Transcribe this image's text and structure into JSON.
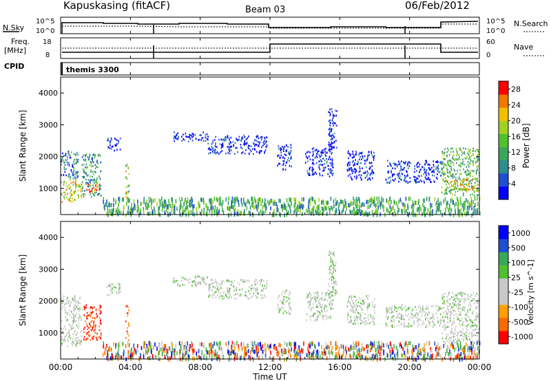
{
  "header": {
    "title": "Kapuskasing (fitACF)",
    "beam": "Beam 03",
    "date": "06/Feb/2012"
  },
  "noise_panel": {
    "left_label": "N.Sky",
    "right_label": "N.Search",
    "ticks": [
      "10^5",
      "10^0"
    ]
  },
  "freq_panel": {
    "left_label_1": "Freq.",
    "left_label_2": "[MHz]",
    "left_ticks": [
      "18",
      "8"
    ],
    "right_label": "Nave",
    "right_ticks": [
      "60",
      "0"
    ]
  },
  "cpid_panel": {
    "label": "CPID",
    "program": "themis 3300"
  },
  "x_axis": {
    "label": "Time UT",
    "ticks": [
      "00:00",
      "04:00",
      "08:00",
      "12:00",
      "16:00",
      "20:00",
      "00:00"
    ]
  },
  "colors": {
    "power": [
      "#0000ff",
      "#1f4fd0",
      "#2f8c8c",
      "#3aa65a",
      "#50c030",
      "#a0d020",
      "#f0c000",
      "#f07800",
      "#ff0000"
    ],
    "velocity": [
      "#ff0000",
      "#ff6a00",
      "#ffa000",
      "#c8c8c8",
      "#c8c8c8",
      "#50c030",
      "#3aa65a",
      "#1f4fd0",
      "#0000ff"
    ],
    "ground_scatter": "#c8c8c8"
  },
  "chart_data": [
    {
      "type": "heatmap",
      "title": "",
      "xlabel": "",
      "ylabel": "Slant Range [km]",
      "xlim": [
        0,
        24
      ],
      "ylim": [
        180,
        4500
      ],
      "y_ticks": [
        "1000",
        "2000",
        "3000",
        "4000"
      ],
      "colorbar": {
        "label": "Power [dB]",
        "range": [
          0,
          30
        ],
        "ticks": [
          "28",
          "24",
          "20",
          "16",
          "12",
          "8",
          "4"
        ]
      },
      "regions": [
        {
          "t": [
            0.0,
            1.2
          ],
          "r": [
            600,
            1300
          ],
          "level": 0.65
        },
        {
          "t": [
            0.0,
            1.0
          ],
          "r": [
            1300,
            2200
          ],
          "level": 0.25
        },
        {
          "t": [
            1.2,
            2.3
          ],
          "r": [
            750,
            2100
          ],
          "level": 0.35
        },
        {
          "t": [
            1.4,
            2.2
          ],
          "r": [
            900,
            1200
          ],
          "level": 0.8
        },
        {
          "t": [
            2.6,
            3.4
          ],
          "r": [
            2200,
            2600
          ],
          "level": 0.1
        },
        {
          "t": [
            3.7,
            3.9
          ],
          "r": [
            700,
            1900
          ],
          "level": 0.6
        },
        {
          "t": [
            6.4,
            8.4
          ],
          "r": [
            2500,
            2800
          ],
          "level": 0.05
        },
        {
          "t": [
            8.4,
            11.8
          ],
          "r": [
            2100,
            2700
          ],
          "level": 0.05
        },
        {
          "t": [
            12.4,
            13.2
          ],
          "r": [
            1600,
            2400
          ],
          "level": 0.05
        },
        {
          "t": [
            14.0,
            15.6
          ],
          "r": [
            1400,
            2300
          ],
          "level": 0.05
        },
        {
          "t": [
            15.3,
            15.8
          ],
          "r": [
            2200,
            3600
          ],
          "level": 0.05
        },
        {
          "t": [
            16.4,
            18.0
          ],
          "r": [
            1300,
            2200
          ],
          "level": 0.05
        },
        {
          "t": [
            18.6,
            21.8
          ],
          "r": [
            1200,
            1900
          ],
          "level": 0.1
        },
        {
          "t": [
            21.8,
            24.0
          ],
          "r": [
            800,
            2300
          ],
          "level": 0.45
        },
        {
          "t": [
            22.0,
            24.0
          ],
          "r": [
            950,
            1300
          ],
          "level": 0.7
        },
        {
          "t": [
            2.4,
            24.0
          ],
          "r": [
            220,
            750
          ],
          "level": 0.4
        }
      ]
    },
    {
      "type": "heatmap",
      "title": "",
      "xlabel": "Time UT",
      "ylabel": "Slant Range [km]",
      "xlim": [
        0,
        24
      ],
      "ylim": [
        180,
        4500
      ],
      "y_ticks": [
        "1000",
        "2000",
        "3000",
        "4000"
      ],
      "colorbar": {
        "label": "Velocity [m s^-1]",
        "range": [
          -1000,
          1000
        ],
        "ticks": [
          "1000",
          "500",
          "100",
          "25",
          "-25",
          "-100",
          "-500",
          "-1000"
        ]
      },
      "regions": [
        {
          "t": [
            0.0,
            1.2
          ],
          "r": [
            600,
            2200
          ],
          "level": 0.5
        },
        {
          "t": [
            1.3,
            2.3
          ],
          "r": [
            800,
            1900
          ],
          "level": 0.1
        },
        {
          "t": [
            2.6,
            3.4
          ],
          "r": [
            2200,
            2600
          ],
          "level": 0.5
        },
        {
          "t": [
            3.7,
            3.9
          ],
          "r": [
            700,
            1900
          ],
          "level": 0.2
        },
        {
          "t": [
            6.4,
            8.4
          ],
          "r": [
            2500,
            2800
          ],
          "level": 0.5
        },
        {
          "t": [
            8.4,
            11.8
          ],
          "r": [
            2100,
            2700
          ],
          "level": 0.5
        },
        {
          "t": [
            12.4,
            13.2
          ],
          "r": [
            1600,
            2400
          ],
          "level": 0.5
        },
        {
          "t": [
            14.0,
            15.6
          ],
          "r": [
            1400,
            2300
          ],
          "level": 0.5
        },
        {
          "t": [
            15.3,
            15.8
          ],
          "r": [
            2200,
            3600
          ],
          "level": 0.55
        },
        {
          "t": [
            16.4,
            18.0
          ],
          "r": [
            1300,
            2200
          ],
          "level": 0.5
        },
        {
          "t": [
            18.6,
            21.8
          ],
          "r": [
            1200,
            1900
          ],
          "level": 0.5
        },
        {
          "t": [
            21.8,
            24.0
          ],
          "r": [
            700,
            2300
          ],
          "level": 0.5
        },
        {
          "t": [
            2.4,
            24.0
          ],
          "r": [
            220,
            750
          ],
          "level": 0.5
        }
      ]
    }
  ]
}
